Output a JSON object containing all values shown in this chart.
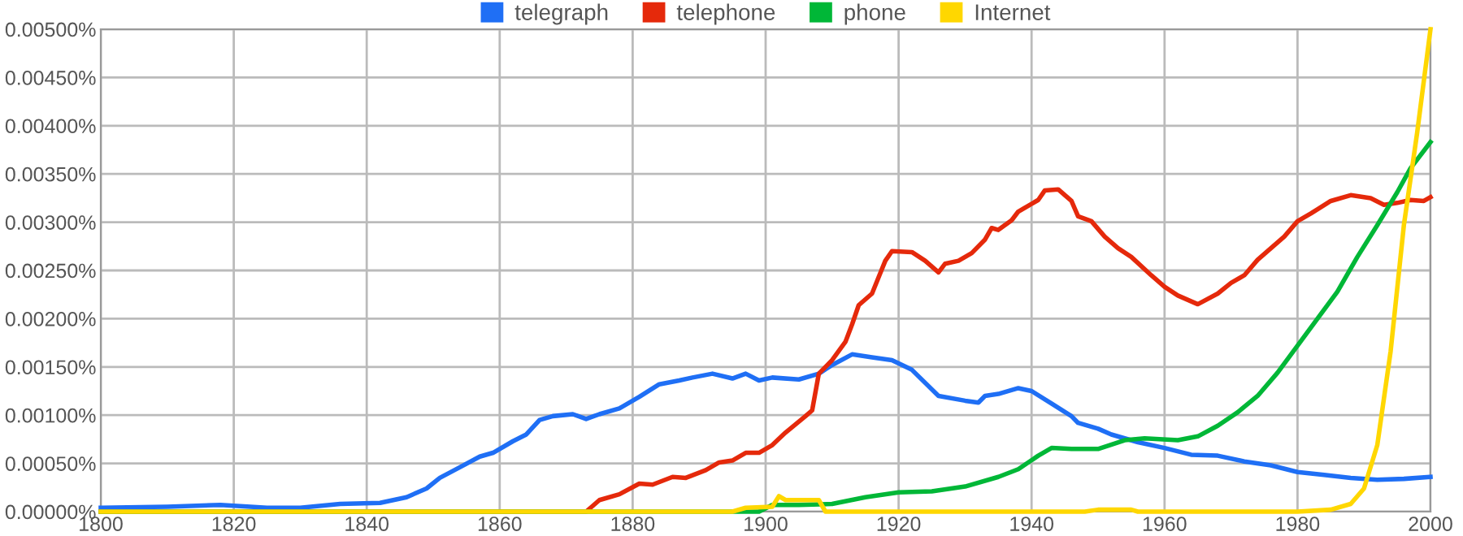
{
  "chart_data": {
    "type": "line",
    "legend": "top",
    "grid": true,
    "marker": "none",
    "line_style": "solid",
    "xlim": [
      1800,
      2000
    ],
    "xticks": [
      1800,
      1820,
      1840,
      1860,
      1880,
      1900,
      1920,
      1940,
      1960,
      1980,
      2000
    ],
    "ylim": [
      0,
      0.005
    ],
    "yticks": [
      {
        "value": 0,
        "label": "0.00000%"
      },
      {
        "value": 0.0005,
        "label": "0.00050%"
      },
      {
        "value": 0.001,
        "label": "0.00100%"
      },
      {
        "value": 0.0015,
        "label": "0.00150%"
      },
      {
        "value": 0.002,
        "label": "0.00200%"
      },
      {
        "value": 0.0025,
        "label": "0.00250%"
      },
      {
        "value": 0.003,
        "label": "0.00300%"
      },
      {
        "value": 0.0035,
        "label": "0.00350%"
      },
      {
        "value": 0.004,
        "label": "0.00400%"
      },
      {
        "value": 0.0045,
        "label": "0.00450%"
      },
      {
        "value": 0.005,
        "label": "0.00500%"
      }
    ],
    "series": [
      {
        "name": "telegraph",
        "color": "#1f6ff5",
        "x": [
          1800,
          1810,
          1818,
          1825,
          1830,
          1836,
          1842,
          1846,
          1849,
          1851,
          1854,
          1857,
          1859,
          1862,
          1864,
          1866,
          1868,
          1871,
          1873,
          1875,
          1878,
          1881,
          1884,
          1887,
          1889,
          1892,
          1895,
          1897,
          1899,
          1901,
          1905,
          1908,
          1910,
          1913,
          1916,
          1919,
          1922,
          1926,
          1930,
          1932,
          1933,
          1935,
          1938,
          1940,
          1943,
          1946,
          1947,
          1950,
          1952,
          1956,
          1960,
          1964,
          1968,
          1972,
          1976,
          1980,
          1984,
          1988,
          1992,
          1996,
          2000
        ],
        "values": [
          4e-05,
          5e-05,
          7e-05,
          4e-05,
          4e-05,
          8e-05,
          9e-05,
          0.00015,
          0.00024,
          0.00035,
          0.00046,
          0.00057,
          0.00061,
          0.00073,
          0.0008,
          0.00095,
          0.00099,
          0.00101,
          0.00096,
          0.00101,
          0.00107,
          0.00119,
          0.00132,
          0.00136,
          0.00139,
          0.00143,
          0.00138,
          0.00143,
          0.00136,
          0.00139,
          0.00137,
          0.00143,
          0.00152,
          0.00163,
          0.0016,
          0.00157,
          0.00147,
          0.0012,
          0.00115,
          0.00113,
          0.0012,
          0.00122,
          0.00128,
          0.00125,
          0.00112,
          0.00099,
          0.00092,
          0.00086,
          0.0008,
          0.00072,
          0.00066,
          0.00059,
          0.00058,
          0.00052,
          0.00048,
          0.00041,
          0.00038,
          0.00035,
          0.00033,
          0.00034,
          0.00036
        ]
      },
      {
        "name": "telephone",
        "color": "#e5290b",
        "x": [
          1800,
          1873,
          1875,
          1878,
          1881,
          1883,
          1886,
          1888,
          1891,
          1893,
          1895,
          1897,
          1899,
          1901,
          1903,
          1906,
          1907,
          1908,
          1910,
          1912,
          1913,
          1914,
          1916,
          1917,
          1918,
          1919,
          1922,
          1924,
          1926,
          1927,
          1929,
          1931,
          1933,
          1934,
          1935,
          1937,
          1938,
          1941,
          1942,
          1944,
          1946,
          1947,
          1949,
          1951,
          1953,
          1955,
          1958,
          1960,
          1962,
          1965,
          1968,
          1970,
          1972,
          1974,
          1976,
          1978,
          1980,
          1982,
          1985,
          1988,
          1991,
          1993,
          1995,
          1997,
          1999,
          2000
        ],
        "values": [
          0,
          0,
          0.00012,
          0.00018,
          0.00029,
          0.00028,
          0.00036,
          0.00035,
          0.00043,
          0.00051,
          0.00053,
          0.00061,
          0.00061,
          0.00069,
          0.00082,
          0.00099,
          0.00105,
          0.00143,
          0.00157,
          0.00176,
          0.00194,
          0.00214,
          0.00226,
          0.00243,
          0.0026,
          0.0027,
          0.00269,
          0.0026,
          0.00248,
          0.00257,
          0.0026,
          0.00268,
          0.00282,
          0.00294,
          0.00292,
          0.00302,
          0.00311,
          0.00323,
          0.00333,
          0.00334,
          0.00322,
          0.00306,
          0.00301,
          0.00285,
          0.00273,
          0.00264,
          0.00245,
          0.00233,
          0.00224,
          0.00215,
          0.00226,
          0.00237,
          0.00245,
          0.00261,
          0.00273,
          0.00285,
          0.00301,
          0.00309,
          0.00322,
          0.00328,
          0.00325,
          0.00318,
          0.0032,
          0.00323,
          0.00322,
          0.00326
        ]
      },
      {
        "name": "phone",
        "color": "#00b737",
        "x": [
          1800,
          1899,
          1901,
          1905,
          1910,
          1915,
          1920,
          1925,
          1930,
          1935,
          1938,
          1941,
          1943,
          1946,
          1950,
          1954,
          1957,
          1962,
          1965,
          1968,
          1971,
          1974,
          1977,
          1980,
          1983,
          1986,
          1989,
          1992,
          1995,
          1997,
          2000
        ],
        "values": [
          0,
          0,
          7e-05,
          7e-05,
          8e-05,
          0.00015,
          0.0002,
          0.00021,
          0.00026,
          0.00036,
          0.00044,
          0.00058,
          0.00066,
          0.00065,
          0.00065,
          0.00074,
          0.00076,
          0.00074,
          0.00078,
          0.00089,
          0.00103,
          0.0012,
          0.00144,
          0.00172,
          0.002,
          0.00228,
          0.00264,
          0.00297,
          0.00331,
          0.00356,
          0.00383
        ]
      },
      {
        "name": "Internet",
        "color": "#ffd700",
        "x": [
          1800,
          1895,
          1897,
          1901,
          1902,
          1903,
          1908,
          1909,
          1948,
          1950,
          1955,
          1956,
          1980,
          1985,
          1988,
          1990,
          1992,
          1994,
          1996,
          1998,
          2000
        ],
        "values": [
          0,
          0,
          4e-05,
          5e-05,
          0.00016,
          0.00012,
          0.00012,
          0,
          0,
          2e-05,
          2e-05,
          0,
          0,
          2e-05,
          8e-05,
          0.00024,
          0.00069,
          0.00166,
          0.00297,
          0.00393,
          0.005
        ]
      }
    ]
  }
}
